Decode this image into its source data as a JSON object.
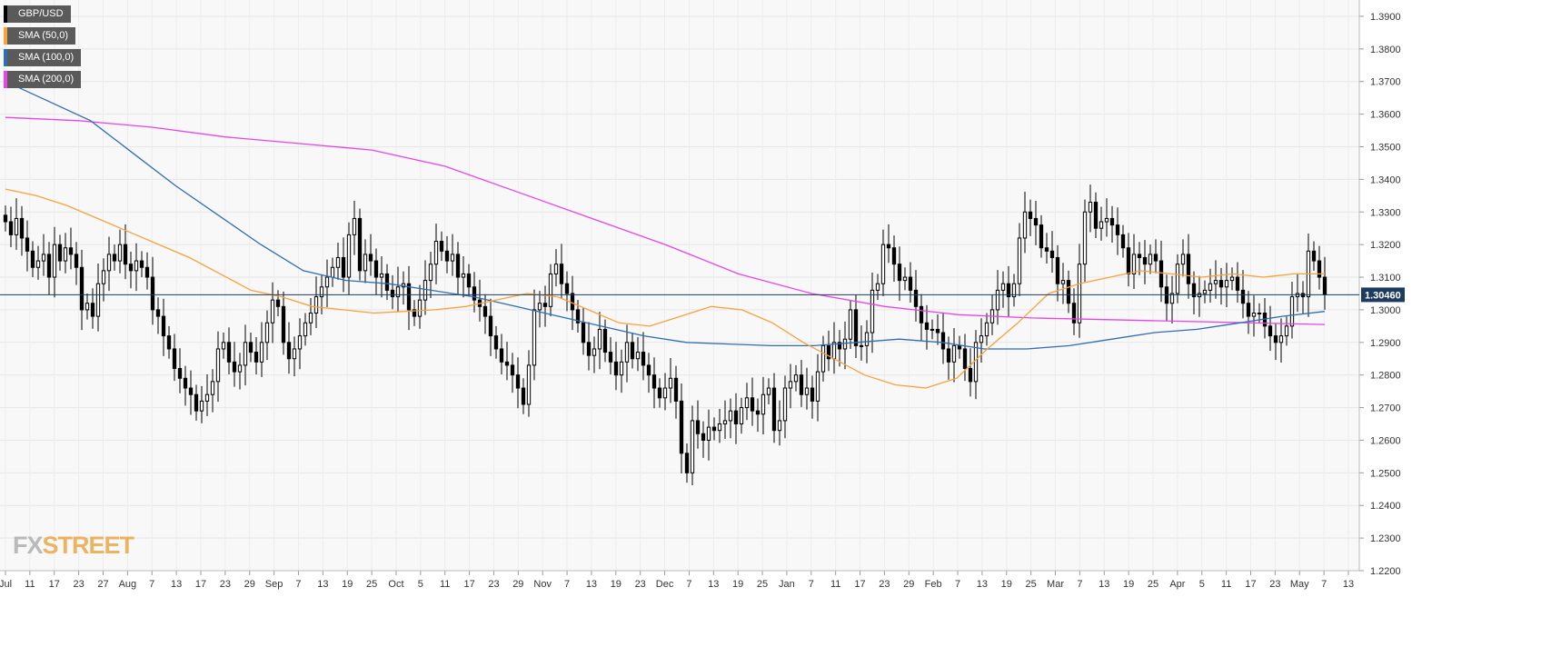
{
  "chart_data": {
    "type": "candlestick",
    "instrument": "GBP/USD",
    "legend": [
      {
        "label": "GBP/USD",
        "color": "#000000"
      },
      {
        "label": "SMA (50,0)",
        "color": "#f7a23a"
      },
      {
        "label": "SMA (100,0)",
        "color": "#2f6db5"
      },
      {
        "label": "SMA (200,0)",
        "color": "#e844e8"
      }
    ],
    "ylim": [
      1.22,
      1.395
    ],
    "y_ticks": [
      "1.2200",
      "1.2300",
      "1.2400",
      "1.2500",
      "1.2600",
      "1.2700",
      "1.2800",
      "1.2900",
      "1.3000",
      "1.3100",
      "1.3200",
      "1.3300",
      "1.3400",
      "1.3500",
      "1.3600",
      "1.3700",
      "1.3800",
      "1.3900"
    ],
    "x_ticks": [
      "Jul",
      "11",
      "17",
      "23",
      "27",
      "Aug",
      "7",
      "13",
      "17",
      "23",
      "29",
      "Sep",
      "7",
      "13",
      "19",
      "25",
      "Oct",
      "5",
      "11",
      "17",
      "23",
      "29",
      "Nov",
      "7",
      "13",
      "19",
      "23",
      "Dec",
      "7",
      "13",
      "19",
      "25",
      "Jan",
      "7",
      "11",
      "17",
      "23",
      "29",
      "Feb",
      "7",
      "13",
      "19",
      "25",
      "Mar",
      "7",
      "13",
      "19",
      "25",
      "Apr",
      "5",
      "11",
      "17",
      "23",
      "May",
      "7",
      "13"
    ],
    "last_price": "1.30460",
    "last_price_value": 1.3046,
    "close": [
      1.327,
      1.323,
      1.328,
      1.322,
      1.318,
      1.313,
      1.315,
      1.317,
      1.31,
      1.32,
      1.315,
      1.319,
      1.317,
      1.313,
      1.3,
      1.302,
      1.298,
      1.308,
      1.312,
      1.317,
      1.315,
      1.32,
      1.314,
      1.312,
      1.315,
      1.313,
      1.31,
      1.3,
      1.298,
      1.292,
      1.288,
      1.282,
      1.279,
      1.276,
      1.274,
      1.269,
      1.272,
      1.274,
      1.278,
      1.288,
      1.29,
      1.284,
      1.281,
      1.283,
      1.29,
      1.287,
      1.284,
      1.29,
      1.296,
      1.303,
      1.301,
      1.29,
      1.285,
      1.288,
      1.292,
      1.296,
      1.299,
      1.304,
      1.307,
      1.31,
      1.313,
      1.316,
      1.31,
      1.323,
      1.328,
      1.312,
      1.317,
      1.315,
      1.31,
      1.311,
      1.306,
      1.304,
      1.307,
      1.308,
      1.3,
      1.298,
      1.303,
      1.309,
      1.314,
      1.321,
      1.318,
      1.315,
      1.317,
      1.31,
      1.311,
      1.307,
      1.303,
      1.301,
      1.298,
      1.292,
      1.288,
      1.284,
      1.283,
      1.28,
      1.276,
      1.271,
      1.283,
      1.3,
      1.302,
      1.301,
      1.311,
      1.314,
      1.308,
      1.305,
      1.3,
      1.296,
      1.29,
      1.286,
      1.288,
      1.294,
      1.287,
      1.284,
      1.28,
      1.284,
      1.29,
      1.285,
      1.287,
      1.283,
      1.28,
      1.276,
      1.273,
      1.276,
      1.279,
      1.272,
      1.256,
      1.25,
      1.266,
      1.262,
      1.26,
      1.264,
      1.263,
      1.265,
      1.266,
      1.269,
      1.265,
      1.27,
      1.273,
      1.269,
      1.268,
      1.274,
      1.276,
      1.263,
      1.266,
      1.276,
      1.278,
      1.28,
      1.274,
      1.276,
      1.272,
      1.281,
      1.289,
      1.285,
      1.29,
      1.288,
      1.291,
      1.3,
      1.289,
      1.289,
      1.293,
      1.306,
      1.308,
      1.32,
      1.319,
      1.314,
      1.309,
      1.31,
      1.306,
      1.301,
      1.296,
      1.294,
      1.294,
      1.293,
      1.288,
      1.284,
      1.289,
      1.288,
      1.282,
      1.278,
      1.29,
      1.292,
      1.296,
      1.3,
      1.306,
      1.308,
      1.304,
      1.308,
      1.322,
      1.33,
      1.328,
      1.326,
      1.319,
      1.318,
      1.316,
      1.308,
      1.309,
      1.302,
      1.296,
      1.314,
      1.33,
      1.333,
      1.325,
      1.327,
      1.328,
      1.326,
      1.323,
      1.319,
      1.311,
      1.317,
      1.316,
      1.314,
      1.317,
      1.315,
      1.307,
      1.302,
      1.305,
      1.314,
      1.317,
      1.308,
      1.304,
      1.305,
      1.306,
      1.308,
      1.309,
      1.307,
      1.309,
      1.31,
      1.306,
      1.302,
      1.298,
      1.299,
      1.299,
      1.295,
      1.292,
      1.29,
      1.292,
      1.295,
      1.304,
      1.305,
      1.304,
      1.318,
      1.315,
      1.31,
      1.3046
    ],
    "sma50": [
      1.337,
      1.335,
      1.332,
      1.328,
      1.324,
      1.32,
      1.316,
      1.311,
      1.306,
      1.304,
      1.301,
      1.3,
      1.299,
      1.2995,
      1.3,
      1.301,
      1.303,
      1.305,
      1.304,
      1.3,
      1.296,
      1.295,
      1.298,
      1.301,
      1.3,
      1.296,
      1.29,
      1.285,
      1.28,
      1.277,
      1.276,
      1.279,
      1.288,
      1.296,
      1.305,
      1.308,
      1.31,
      1.312,
      1.311,
      1.31,
      1.311,
      1.31,
      1.311,
      1.311
    ],
    "sma100": [
      1.37,
      1.364,
      1.358,
      1.348,
      1.338,
      1.329,
      1.32,
      1.312,
      1.309,
      1.308,
      1.306,
      1.304,
      1.301,
      1.298,
      1.295,
      1.292,
      1.29,
      1.2895,
      1.289,
      1.289,
      1.29,
      1.291,
      1.29,
      1.288,
      1.288,
      1.289,
      1.291,
      1.293,
      1.294,
      1.296,
      1.298,
      1.2995
    ],
    "sma200": [
      1.359,
      1.358,
      1.356,
      1.353,
      1.351,
      1.349,
      1.344,
      1.336,
      1.328,
      1.32,
      1.311,
      1.305,
      1.301,
      1.2985,
      1.2975,
      1.297,
      1.2965,
      1.296,
      1.2955
    ]
  }
}
